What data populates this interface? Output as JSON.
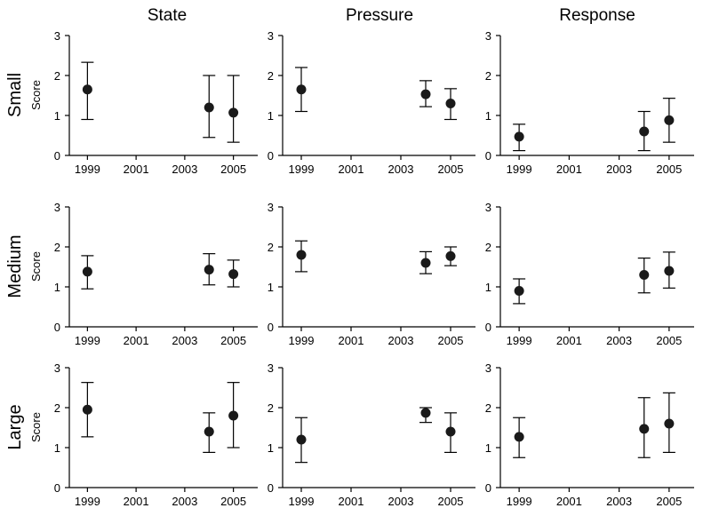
{
  "chart_data": {
    "type": "scatter",
    "columns": [
      "State",
      "Pressure",
      "Response"
    ],
    "rows": [
      "Small",
      "Medium",
      "Large"
    ],
    "ylabel": "Score",
    "ylim": [
      0,
      3
    ],
    "yticks": [
      "0",
      "1",
      "2",
      "3"
    ],
    "xlim": [
      1998,
      2006
    ],
    "xticks": [
      1999,
      2001,
      2003,
      2005
    ],
    "x": [
      1999,
      2004,
      2005
    ],
    "panels": [
      {
        "row": "Small",
        "column": "State",
        "points": [
          {
            "x": 1999,
            "y": 1.65,
            "low": 0.9,
            "high": 2.33
          },
          {
            "x": 2004,
            "y": 1.2,
            "low": 0.45,
            "high": 2.0
          },
          {
            "x": 2005,
            "y": 1.07,
            "low": 0.33,
            "high": 2.0
          }
        ]
      },
      {
        "row": "Small",
        "column": "Pressure",
        "points": [
          {
            "x": 1999,
            "y": 1.65,
            "low": 1.1,
            "high": 2.2
          },
          {
            "x": 2004,
            "y": 1.53,
            "low": 1.22,
            "high": 1.87
          },
          {
            "x": 2005,
            "y": 1.3,
            "low": 0.9,
            "high": 1.67
          }
        ]
      },
      {
        "row": "Small",
        "column": "Response",
        "points": [
          {
            "x": 1999,
            "y": 0.47,
            "low": 0.12,
            "high": 0.78
          },
          {
            "x": 2004,
            "y": 0.6,
            "low": 0.12,
            "high": 1.1
          },
          {
            "x": 2005,
            "y": 0.88,
            "low": 0.33,
            "high": 1.43
          }
        ]
      },
      {
        "row": "Medium",
        "column": "State",
        "points": [
          {
            "x": 1999,
            "y": 1.38,
            "low": 0.95,
            "high": 1.78
          },
          {
            "x": 2004,
            "y": 1.43,
            "low": 1.05,
            "high": 1.83
          },
          {
            "x": 2005,
            "y": 1.32,
            "low": 1.0,
            "high": 1.67
          }
        ]
      },
      {
        "row": "Medium",
        "column": "Pressure",
        "points": [
          {
            "x": 1999,
            "y": 1.8,
            "low": 1.38,
            "high": 2.15
          },
          {
            "x": 2004,
            "y": 1.6,
            "low": 1.33,
            "high": 1.88
          },
          {
            "x": 2005,
            "y": 1.77,
            "low": 1.53,
            "high": 2.0
          }
        ]
      },
      {
        "row": "Medium",
        "column": "Response",
        "points": [
          {
            "x": 1999,
            "y": 0.9,
            "low": 0.58,
            "high": 1.2
          },
          {
            "x": 2004,
            "y": 1.3,
            "low": 0.85,
            "high": 1.72
          },
          {
            "x": 2005,
            "y": 1.4,
            "low": 0.97,
            "high": 1.87
          }
        ]
      },
      {
        "row": "Large",
        "column": "State",
        "points": [
          {
            "x": 1999,
            "y": 1.95,
            "low": 1.27,
            "high": 2.63
          },
          {
            "x": 2004,
            "y": 1.4,
            "low": 0.88,
            "high": 1.87
          },
          {
            "x": 2005,
            "y": 1.8,
            "low": 1.0,
            "high": 2.63
          }
        ]
      },
      {
        "row": "Large",
        "column": "Pressure",
        "points": [
          {
            "x": 1999,
            "y": 1.2,
            "low": 0.63,
            "high": 1.75
          },
          {
            "x": 2004,
            "y": 1.87,
            "low": 1.63,
            "high": 2.0
          },
          {
            "x": 2005,
            "y": 1.4,
            "low": 0.88,
            "high": 1.87
          }
        ]
      },
      {
        "row": "Large",
        "column": "Response",
        "points": [
          {
            "x": 1999,
            "y": 1.27,
            "low": 0.75,
            "high": 1.75
          },
          {
            "x": 2004,
            "y": 1.47,
            "low": 0.75,
            "high": 2.25
          },
          {
            "x": 2005,
            "y": 1.6,
            "low": 0.88,
            "high": 2.37
          }
        ]
      }
    ],
    "grid": false,
    "legend": "none",
    "colors": {
      "point": "#1a1a1a",
      "axis": "#000000"
    }
  }
}
